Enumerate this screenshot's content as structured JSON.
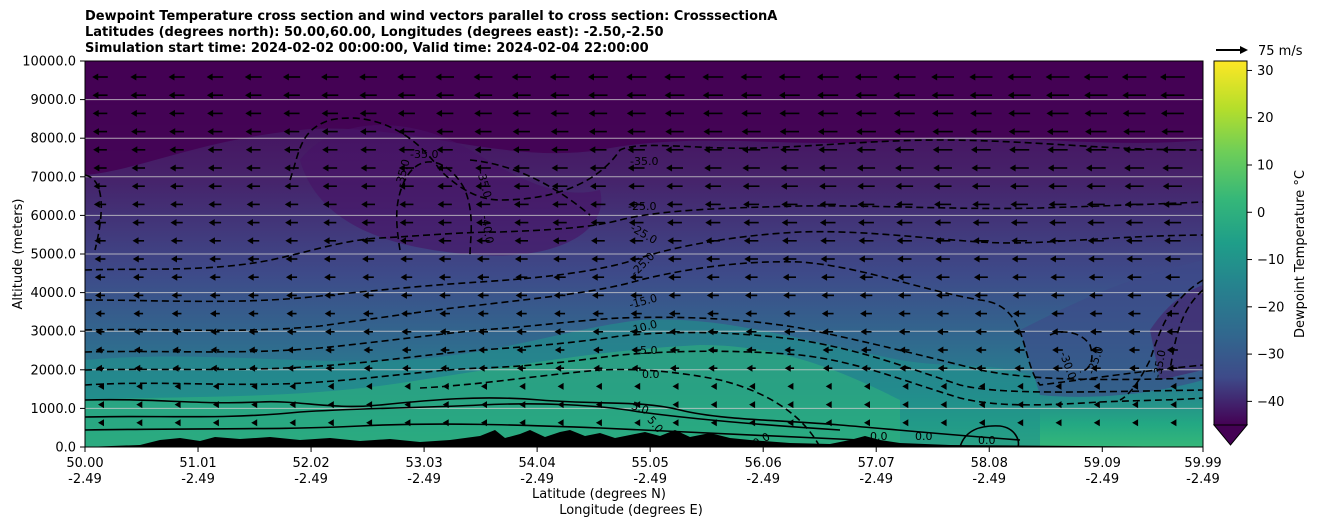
{
  "title_lines": [
    "Dewpoint Temperature cross section and wind vectors parallel to cross section: CrosssectionA",
    "Latitudes (degrees north): 50.00,60.00, Longitudes (degrees east): -2.50,-2.50",
    "Simulation start time: 2024-02-02 00:00:00, Valid time: 2024-02-04 22:00:00"
  ],
  "quiver_key_label": "75 m/s",
  "chart_data": {
    "type": "heatmap",
    "title": "Dewpoint Temperature cross section and wind vectors parallel to cross section: CrosssectionA",
    "ylabel": "Altitude (meters)",
    "xlabel": "Latitude (degrees N)",
    "xlabel2": "Longitude (degrees E)",
    "ylim": [
      0,
      10000
    ],
    "xlim": [
      50.0,
      59.99
    ],
    "y_ticks": [
      "0.0",
      "1000.0",
      "2000.0",
      "3000.0",
      "4000.0",
      "5000.0",
      "6000.0",
      "7000.0",
      "8000.0",
      "9000.0",
      "10000.0"
    ],
    "y_tick_values": [
      0,
      1000,
      2000,
      3000,
      4000,
      5000,
      6000,
      7000,
      8000,
      9000,
      10000
    ],
    "x_ticks": [
      {
        "lat": "50.00",
        "lon": "-2.49"
      },
      {
        "lat": "51.01",
        "lon": "-2.49"
      },
      {
        "lat": "52.02",
        "lon": "-2.49"
      },
      {
        "lat": "53.03",
        "lon": "-2.49"
      },
      {
        "lat": "54.04",
        "lon": "-2.49"
      },
      {
        "lat": "55.05",
        "lon": "-2.49"
      },
      {
        "lat": "56.06",
        "lon": "-2.49"
      },
      {
        "lat": "57.07",
        "lon": "-2.49"
      },
      {
        "lat": "58.08",
        "lon": "-2.49"
      },
      {
        "lat": "59.09",
        "lon": "-2.49"
      },
      {
        "lat": "59.99",
        "lon": "-2.49"
      }
    ],
    "x_tick_values": [
      50.0,
      51.01,
      52.02,
      53.03,
      54.04,
      55.05,
      56.06,
      57.07,
      58.08,
      59.09,
      59.99
    ],
    "grid": "horizontal",
    "colorbar": {
      "label": "Dewpoint Temperature °C",
      "ticks": [
        "30",
        "20",
        "10",
        "0",
        "−10",
        "−20",
        "−30",
        "−40"
      ],
      "tick_values": [
        30,
        20,
        10,
        0,
        -10,
        -20,
        -30,
        -40
      ],
      "range": [
        -45,
        32
      ],
      "extend": "min",
      "colormap": "viridis"
    },
    "contour_labels": [
      "-35.0",
      "-35.0",
      "-35.0",
      "-35.0",
      "-40.0",
      "-35.0",
      "-25.0",
      "-25.0",
      "-25.0",
      "-15.0",
      "-10.0",
      "-5.0",
      "0.0",
      "5.0",
      "5.0",
      "0.0",
      "0.0",
      "0.0",
      "0.0",
      "-30.0",
      "-25.0",
      "-35.0"
    ],
    "wind_direction": "northward-to-southward (vectors point toward decreasing latitude)"
  }
}
